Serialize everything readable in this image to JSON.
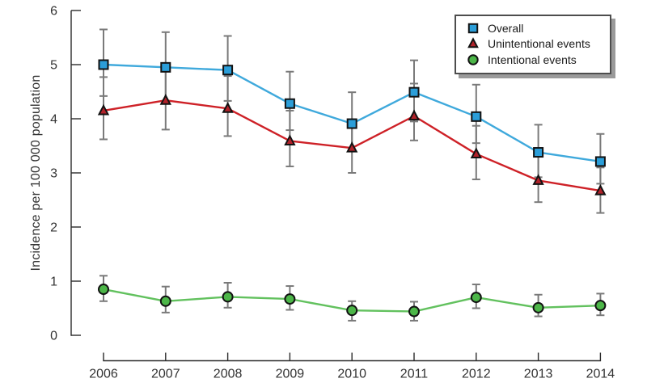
{
  "figure": {
    "background": "#ffffff"
  },
  "chart_data": {
    "type": "line",
    "title": "",
    "xlabel": "",
    "ylabel": "Incidence per 100 000 population",
    "x": [
      2006,
      2007,
      2008,
      2009,
      2010,
      2011,
      2012,
      2013,
      2014
    ],
    "ylim": [
      0,
      6
    ],
    "yticks": [
      0,
      1,
      2,
      3,
      4,
      5,
      6
    ],
    "grid": false,
    "error_bars": true,
    "legend_position": "top-right",
    "series": [
      {
        "name": "Overall",
        "marker": "square",
        "marker_color": "#2b9ed9",
        "line_color": "#3fa9dc",
        "values": [
          5.0,
          4.95,
          4.9,
          4.28,
          3.91,
          4.49,
          4.04,
          3.38,
          3.21
        ],
        "ci_low": [
          4.42,
          4.33,
          4.33,
          3.79,
          3.42,
          3.95,
          3.55,
          2.92,
          2.8
        ],
        "ci_high": [
          5.65,
          5.6,
          5.53,
          4.87,
          4.49,
          5.08,
          4.63,
          3.89,
          3.72
        ]
      },
      {
        "name": "Unintentional events",
        "marker": "triangle",
        "marker_color": "#b2222a",
        "line_color": "#ce2127",
        "values": [
          4.15,
          4.34,
          4.19,
          3.59,
          3.46,
          4.05,
          3.35,
          2.86,
          2.67
        ],
        "ci_low": [
          3.62,
          3.8,
          3.68,
          3.12,
          3.0,
          3.6,
          2.88,
          2.46,
          2.26
        ],
        "ci_high": [
          4.77,
          4.9,
          4.79,
          4.15,
          3.95,
          4.65,
          3.87,
          3.35,
          3.1
        ]
      },
      {
        "name": "Intentional events",
        "marker": "circle",
        "marker_color": "#4cb648",
        "line_color": "#62c15e",
        "values": [
          0.85,
          0.63,
          0.71,
          0.67,
          0.46,
          0.44,
          0.7,
          0.51,
          0.55
        ],
        "ci_low": [
          0.63,
          0.42,
          0.51,
          0.47,
          0.27,
          0.27,
          0.5,
          0.35,
          0.37
        ],
        "ci_high": [
          1.1,
          0.9,
          0.97,
          0.91,
          0.63,
          0.62,
          0.94,
          0.75,
          0.77
        ]
      }
    ]
  },
  "colors": {
    "error_bar": "#7a7a7a",
    "axis": "#2b2b2b",
    "tick_text": "#333333",
    "marker_outline": "#121212"
  }
}
